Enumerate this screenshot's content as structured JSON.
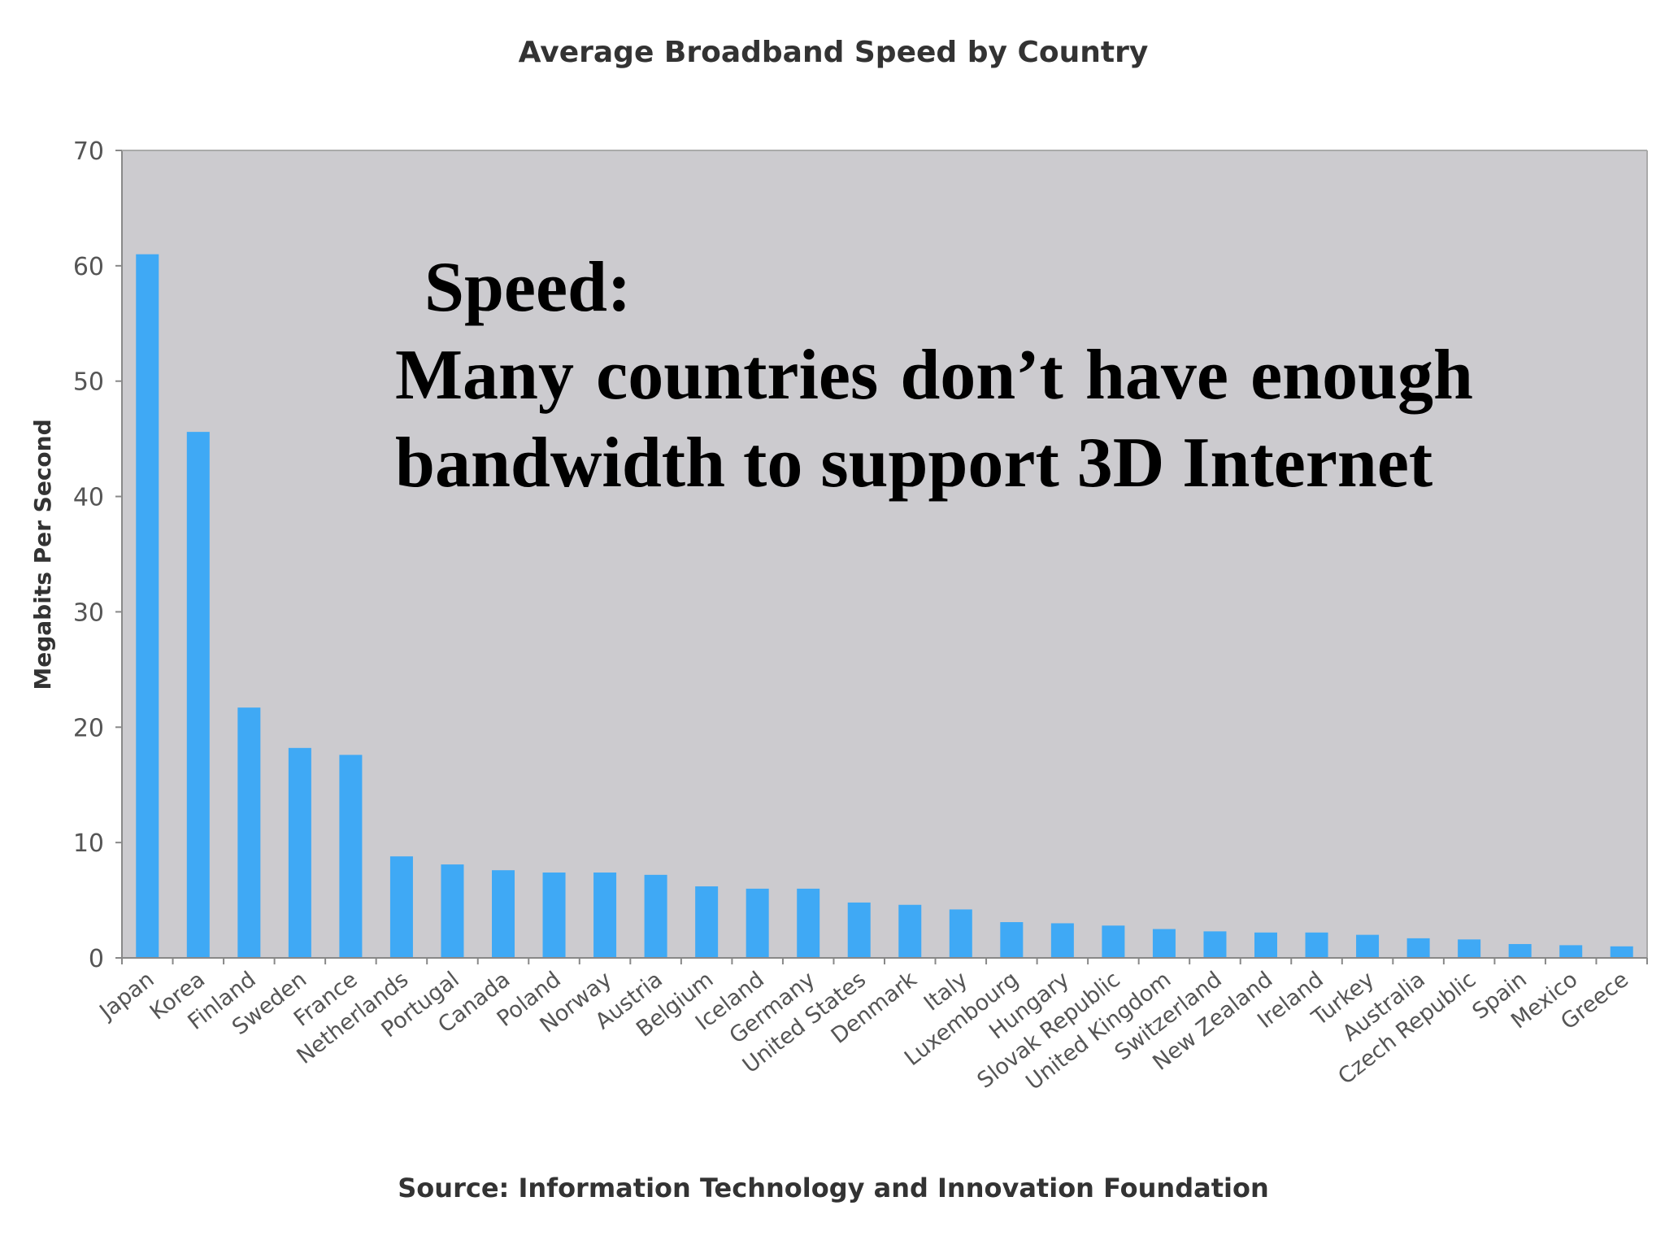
{
  "chart_data": {
    "type": "bar",
    "title": "Average Broadband Speed by Country",
    "ylabel": "Megabits Per Second",
    "xlabel": "",
    "source": "Source: Information Technology and Innovation Foundation",
    "ylim": [
      0,
      70
    ],
    "yticks": [
      0,
      10,
      20,
      30,
      40,
      50,
      60,
      70
    ],
    "grid": false,
    "legend": "none",
    "categories": [
      "Japan",
      "Korea",
      "Finland",
      "Sweden",
      "France",
      "Netherlands",
      "Portugal",
      "Canada",
      "Poland",
      "Norway",
      "Austria",
      "Belgium",
      "Iceland",
      "Germany",
      "United States",
      "Denmark",
      "Italy",
      "Luxembourg",
      "Hungary",
      "Slovak Republic",
      "United Kingdom",
      "Switzerland",
      "New Zealand",
      "Ireland",
      "Turkey",
      "Australia",
      "Czech Republic",
      "Spain",
      "Mexico",
      "Greece"
    ],
    "values": [
      61,
      45.6,
      21.7,
      18.2,
      17.6,
      8.8,
      8.1,
      7.6,
      7.4,
      7.4,
      7.2,
      6.2,
      6.0,
      6.0,
      4.8,
      4.6,
      4.2,
      3.1,
      3.0,
      2.8,
      2.5,
      2.3,
      2.2,
      2.2,
      2.0,
      1.7,
      1.6,
      1.2,
      1.1,
      1.0
    ],
    "colors": {
      "bar": "#3fa9f5",
      "plot_bg": "#cccbcf",
      "axis": "#888888"
    }
  },
  "overlay": {
    "heading": "Speed:",
    "body": "Many countries don’t have enough bandwidth to support 3D Internet"
  }
}
